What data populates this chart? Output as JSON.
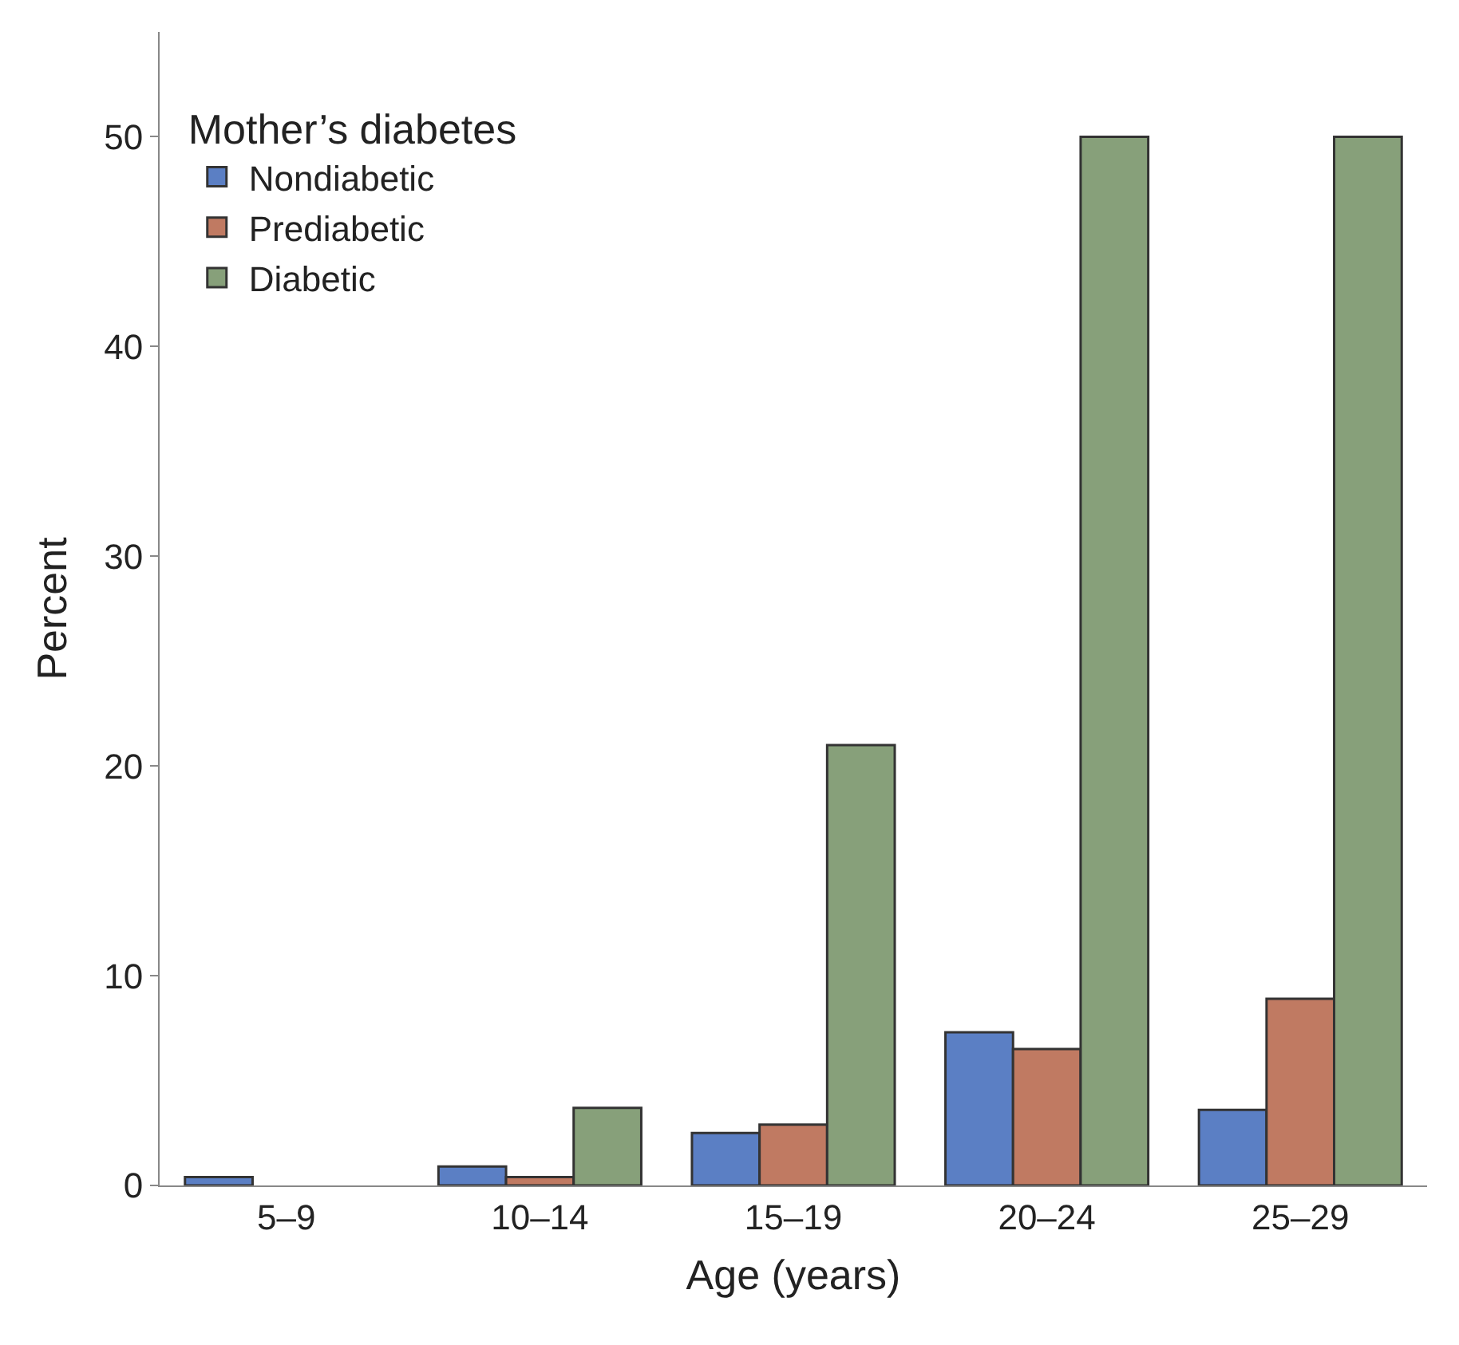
{
  "chart_data": {
    "type": "bar",
    "xlabel": "Age (years)",
    "ylabel": "Percent",
    "legend_title": "Mother’s diabetes",
    "categories": [
      "5–9",
      "10–14",
      "15–19",
      "20–24",
      "25–29"
    ],
    "series": [
      {
        "name": "Nondiabetic",
        "color": "#5b7fc4",
        "values": [
          0.4,
          0.9,
          2.5,
          7.3,
          3.6
        ]
      },
      {
        "name": "Prediabetic",
        "color": "#c07a62",
        "values": [
          null,
          0.4,
          2.9,
          6.5,
          8.9
        ]
      },
      {
        "name": "Diabetic",
        "color": "#87a07a",
        "values": [
          null,
          3.7,
          21,
          50,
          50
        ]
      }
    ],
    "ylim": [
      0,
      55
    ],
    "yticks": [
      0,
      10,
      20,
      30,
      40,
      50
    ],
    "legend": "top left"
  }
}
